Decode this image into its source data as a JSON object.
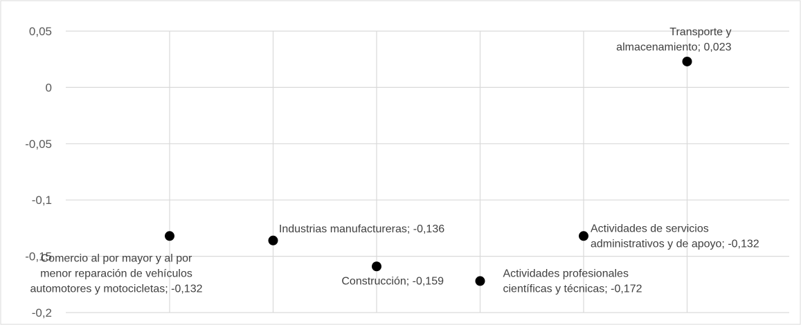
{
  "chart_data": {
    "type": "scatter",
    "title": "",
    "xlabel": "",
    "ylabel": "",
    "ylim": [
      -0.2,
      0.05
    ],
    "yticks": [
      "0,05",
      "0",
      "-0,05",
      "-0,1",
      "-0,15",
      "-0,2"
    ],
    "grid": true,
    "legend": "none",
    "colors": {
      "point": "#000000",
      "grid": "#d9d9d9",
      "text": "#404040",
      "frame": "#d9d9d9"
    },
    "points": [
      {
        "x": 1,
        "y": -0.132,
        "label_lines": [
          "Comercio al por mayor y al por",
          "menor  reparación de vehículos",
          "automotores y motocicletas; -0,132"
        ]
      },
      {
        "x": 2,
        "y": -0.136,
        "label_lines": [
          "Industrias manufactureras; -0,136"
        ]
      },
      {
        "x": 3,
        "y": -0.159,
        "label_lines": [
          "Construcción; -0,159"
        ]
      },
      {
        "x": 4,
        "y": -0.172,
        "label_lines": [
          "Actividades profesionales",
          "científicas y técnicas; -0,172"
        ]
      },
      {
        "x": 5,
        "y": -0.132,
        "label_lines": [
          "Actividades de servicios",
          "administrativos y de apoyo; -0,132"
        ]
      },
      {
        "x": 6,
        "y": 0.023,
        "label_lines": [
          "Transporte y",
          "almacenamiento; 0,023"
        ]
      }
    ]
  }
}
